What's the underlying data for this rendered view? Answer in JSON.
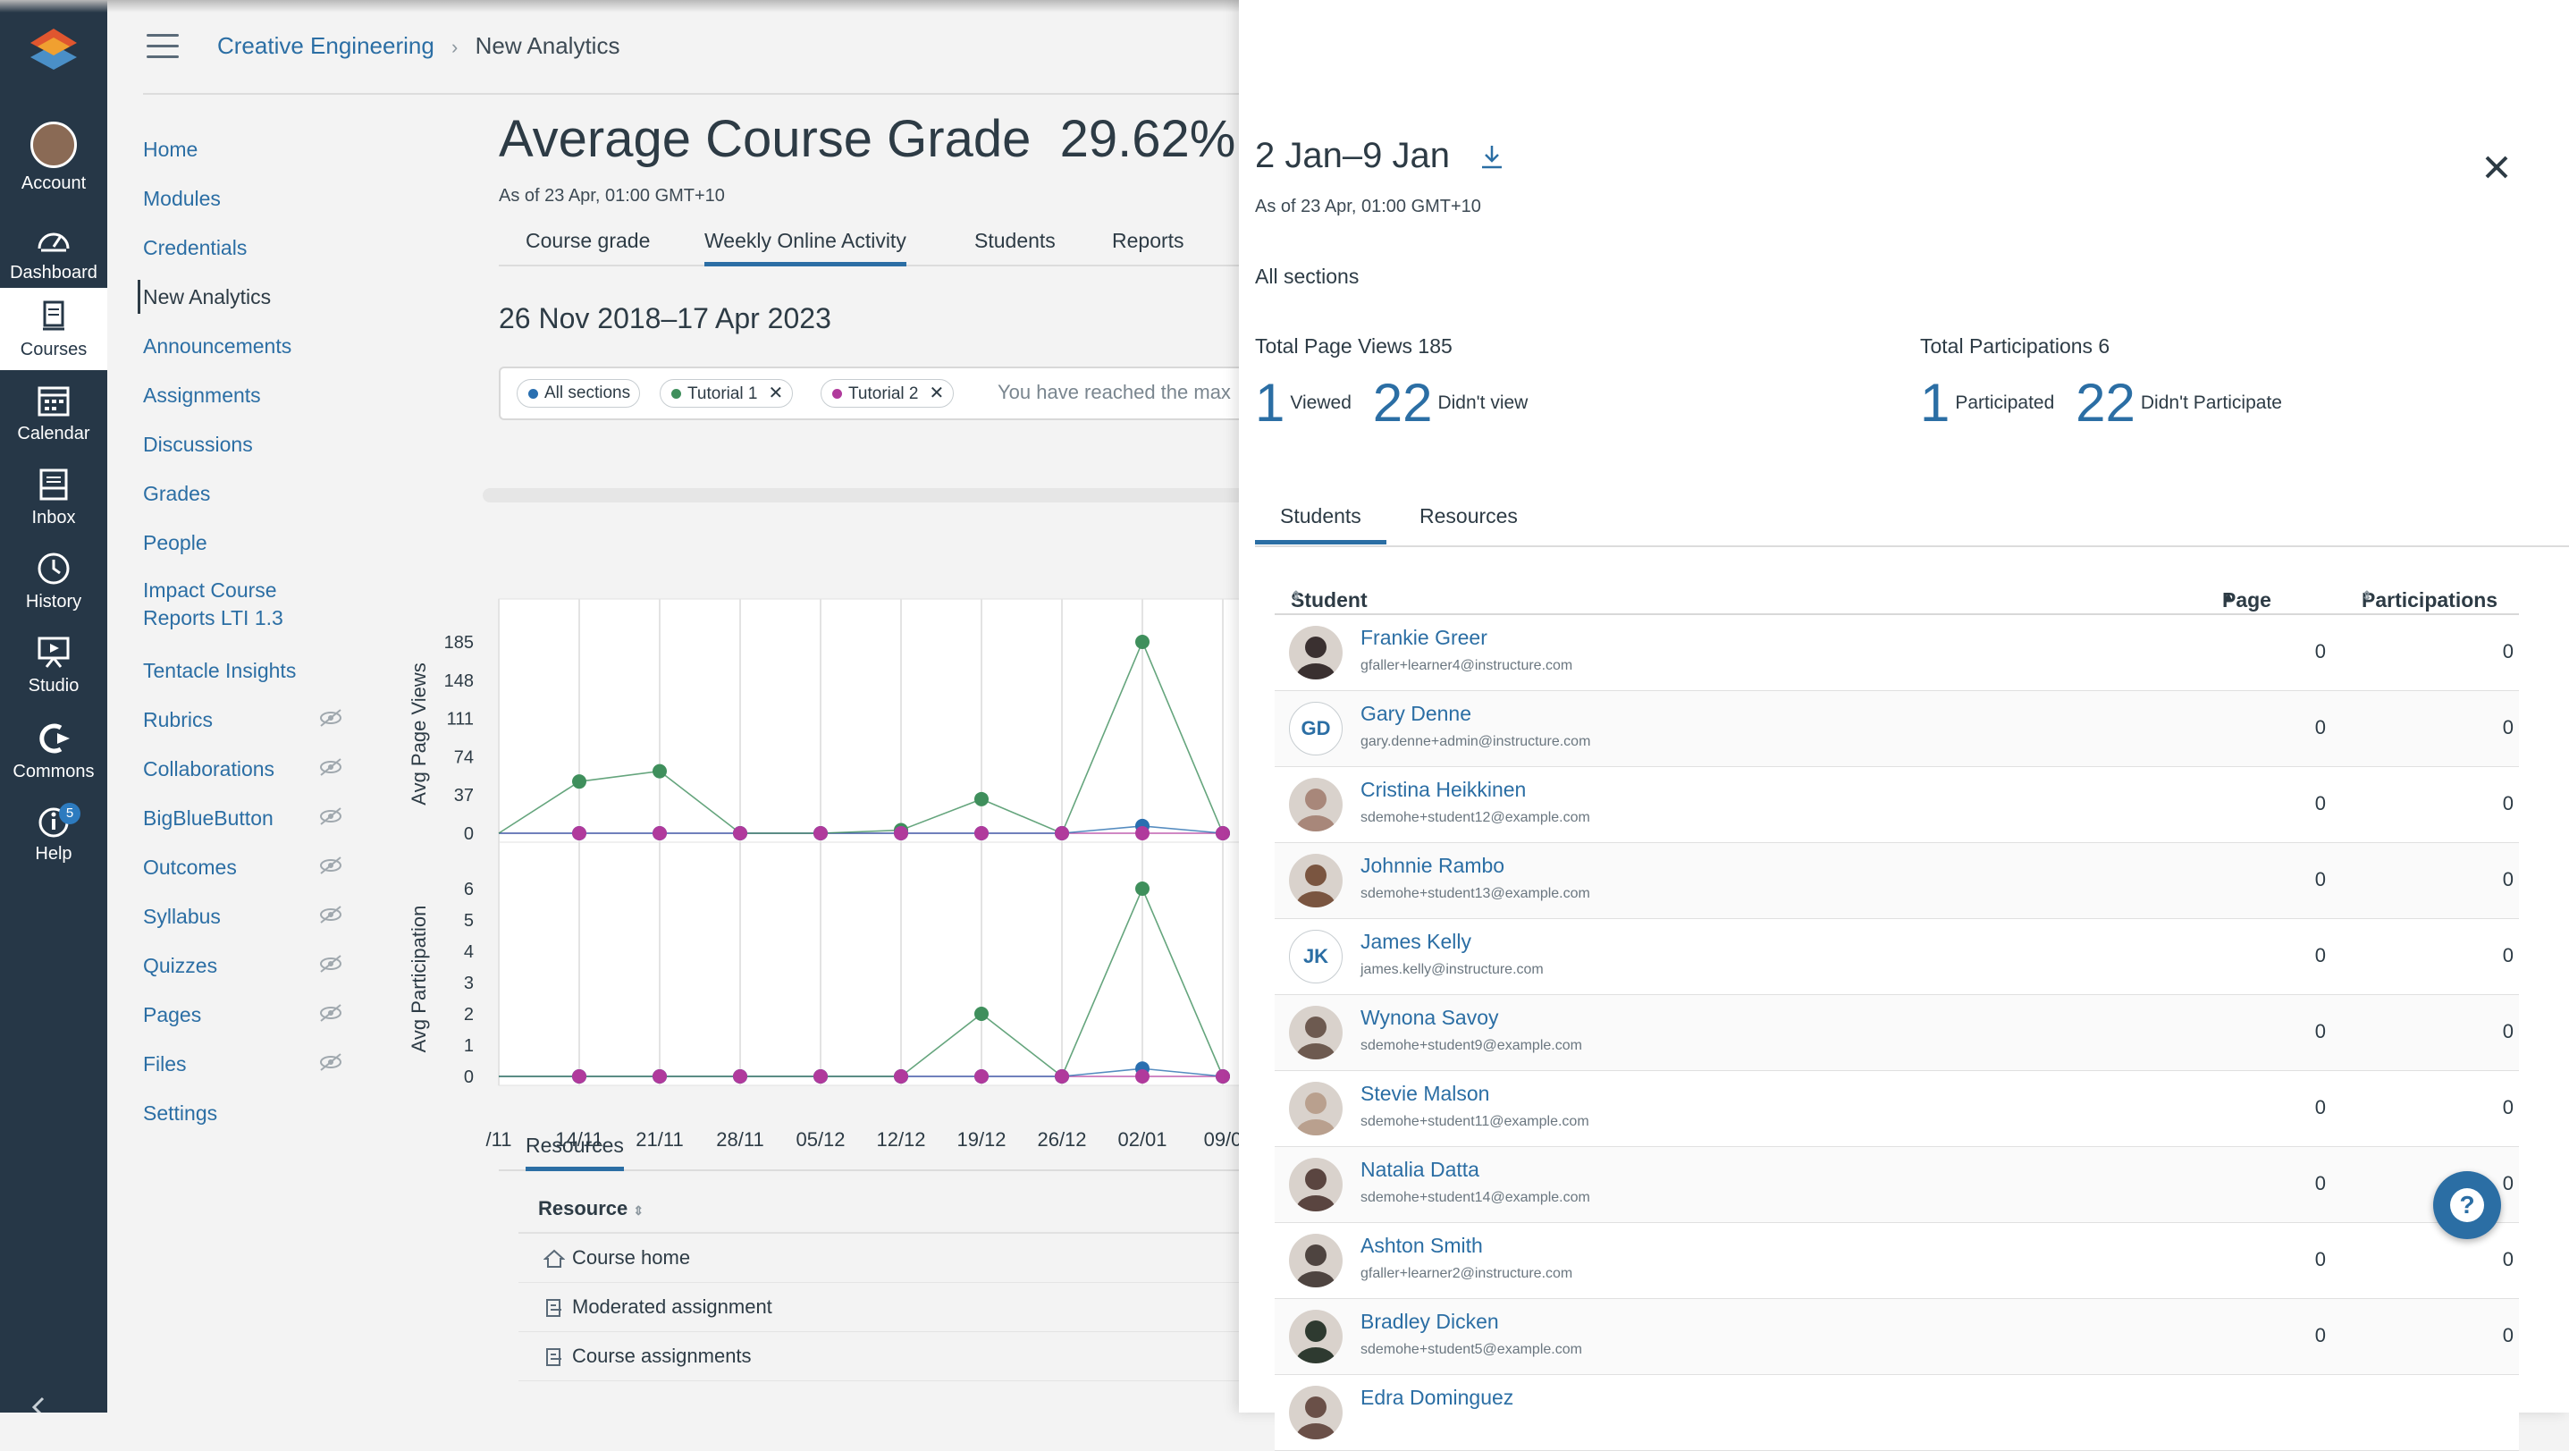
{
  "global_nav": {
    "items": [
      {
        "label": "Account",
        "icon": "account-avatar"
      },
      {
        "label": "Dashboard",
        "icon": "dashboard-icon"
      },
      {
        "label": "Courses",
        "icon": "courses-icon"
      },
      {
        "label": "Calendar",
        "icon": "calendar-icon"
      },
      {
        "label": "Inbox",
        "icon": "inbox-icon"
      },
      {
        "label": "History",
        "icon": "history-icon"
      },
      {
        "label": "Studio",
        "icon": "studio-icon"
      },
      {
        "label": "Commons",
        "icon": "commons-icon"
      },
      {
        "label": "Help",
        "icon": "help-icon",
        "badge": "5"
      }
    ]
  },
  "breadcrumb": {
    "course": "Creative Engineering",
    "page": "New Analytics"
  },
  "course_nav": [
    "Home",
    "Modules",
    "Credentials",
    "New Analytics",
    "Announcements",
    "Assignments",
    "Discussions",
    "Grades",
    "People",
    "Impact Course Reports LTI 1.3",
    "Tentacle Insights",
    "Rubrics",
    "Collaborations",
    "BigBlueButton",
    "Outcomes",
    "Syllabus",
    "Quizzes",
    "Pages",
    "Files",
    "Settings"
  ],
  "main": {
    "title": "Average Course Grade",
    "grade": "29.62%",
    "as_of": "As of 23 Apr, 01:00 GMT+10",
    "tabs": [
      "Course grade",
      "Weekly Online Activity",
      "Students",
      "Reports"
    ],
    "date_range": "26 Nov 2018–17 Apr 2023",
    "filters": [
      "All sections",
      "Tutorial 1",
      "Tutorial 2"
    ],
    "filter_message": "You have reached the max"
  },
  "chart_data": [
    {
      "type": "line",
      "ylabel": "Avg Page Views",
      "yticks": [
        0,
        37,
        74,
        111,
        148,
        185
      ],
      "ylim": [
        0,
        185
      ],
      "categories": [
        "/11",
        "14/11",
        "21/11",
        "28/11",
        "05/12",
        "12/12",
        "19/12",
        "26/12",
        "02/01",
        "09/0"
      ],
      "series": [
        {
          "color": "#3f8f5c",
          "values": [
            0,
            50,
            60,
            0,
            0,
            3,
            33,
            0,
            185,
            0
          ]
        },
        {
          "color": "#2a6fb0",
          "values": [
            0,
            0,
            0,
            0,
            0,
            0,
            0,
            0,
            7,
            0
          ]
        },
        {
          "color": "#b03a9c",
          "values": [
            0,
            0,
            0,
            0,
            0,
            0,
            0,
            0,
            0,
            0
          ]
        }
      ]
    },
    {
      "type": "line",
      "ylabel": "Avg Participation",
      "yticks": [
        0,
        1,
        2,
        3,
        4,
        5,
        6
      ],
      "ylim": [
        0,
        6
      ],
      "categories": [
        "/11",
        "14/11",
        "21/11",
        "28/11",
        "05/12",
        "12/12",
        "19/12",
        "26/12",
        "02/01",
        "09/0"
      ],
      "series": [
        {
          "color": "#3f8f5c",
          "values": [
            0,
            0,
            0,
            0,
            0,
            0,
            2,
            0,
            6,
            0
          ]
        },
        {
          "color": "#2a6fb0",
          "values": [
            0,
            0,
            0,
            0,
            0,
            0,
            0,
            0,
            0.25,
            0
          ]
        },
        {
          "color": "#b03a9c",
          "values": [
            0,
            0,
            0,
            0,
            0,
            0,
            0,
            0,
            0,
            0
          ]
        }
      ]
    }
  ],
  "resources": {
    "tab": "Resources",
    "header": "Resource",
    "rows": [
      {
        "label": "Course home",
        "icon": "home-icon"
      },
      {
        "label": "Moderated assignment",
        "icon": "assignment-icon"
      },
      {
        "label": "Course assignments",
        "icon": "assignment-icon"
      }
    ]
  },
  "tray": {
    "title": "2 Jan–9 Jan",
    "as_of": "As of 23 Apr, 01:00 GMT+10",
    "sections": "All sections",
    "page_views": {
      "label": "Total Page Views 185",
      "viewed": "1",
      "viewed_label": "Viewed",
      "not_viewed": "22",
      "not_viewed_label": "Didn't view"
    },
    "participations": {
      "label": "Total Participations 6",
      "participated": "1",
      "participated_label": "Participated",
      "not_participated": "22",
      "not_participated_label": "Didn't Participate"
    },
    "tabs": [
      "Students",
      "Resources"
    ],
    "columns": {
      "student": "Student",
      "page_views": "Page views",
      "participations": "Participations"
    },
    "students": [
      {
        "name": "Frankie Greer",
        "email": "gfaller+learner4@instructure.com",
        "page_views": "0",
        "participations": "0",
        "initials": "",
        "avatar_color": "#3a3030"
      },
      {
        "name": "Gary Denne",
        "email": "gary.denne+admin@instructure.com",
        "page_views": "0",
        "participations": "0",
        "initials": "GD",
        "avatar_color": ""
      },
      {
        "name": "Cristina Heikkinen",
        "email": "sdemohe+student12@example.com",
        "page_views": "0",
        "participations": "0",
        "initials": "",
        "avatar_color": "#a8877a"
      },
      {
        "name": "Johnnie Rambo",
        "email": "sdemohe+student13@example.com",
        "page_views": "0",
        "participations": "0",
        "initials": "",
        "avatar_color": "#7a5540"
      },
      {
        "name": "James Kelly",
        "email": "james.kelly@instructure.com",
        "page_views": "0",
        "participations": "0",
        "initials": "JK",
        "avatar_color": ""
      },
      {
        "name": "Wynona Savoy",
        "email": "sdemohe+student9@example.com",
        "page_views": "0",
        "participations": "0",
        "initials": "",
        "avatar_color": "#6d5a50"
      },
      {
        "name": "Stevie Malson",
        "email": "sdemohe+student11@example.com",
        "page_views": "0",
        "participations": "0",
        "initials": "",
        "avatar_color": "#b9a08e"
      },
      {
        "name": "Natalia Datta",
        "email": "sdemohe+student14@example.com",
        "page_views": "0",
        "participations": "0",
        "initials": "",
        "avatar_color": "#5a4540"
      },
      {
        "name": "Ashton Smith",
        "email": "gfaller+learner2@instructure.com",
        "page_views": "0",
        "participations": "0",
        "initials": "",
        "avatar_color": "#4e4440"
      },
      {
        "name": "Bradley Dicken",
        "email": "sdemohe+student5@example.com",
        "page_views": "0",
        "participations": "0",
        "initials": "",
        "avatar_color": "#2e3a30"
      },
      {
        "name": "Edra Dominguez",
        "email": "",
        "page_views": "",
        "participations": "",
        "initials": "",
        "avatar_color": "#6a5048"
      }
    ]
  }
}
